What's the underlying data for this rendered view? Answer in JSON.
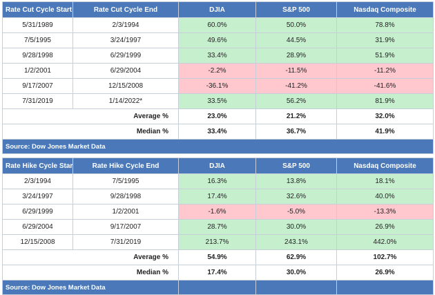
{
  "cut_table": {
    "headers": [
      "Rate Cut Cycle Start",
      "Rate Cut Cycle End",
      "DJIA",
      "S&P 500",
      "Nasdaq Composite"
    ],
    "rows": [
      {
        "start": "5/31/1989",
        "end": "2/3/1994",
        "djia": "60.0%",
        "sp500": "50.0%",
        "nasdaq": "78.8%",
        "djia_tone": "pos",
        "sp500_tone": "pos",
        "nasdaq_tone": "pos"
      },
      {
        "start": "7/5/1995",
        "end": "3/24/1997",
        "djia": "49.6%",
        "sp500": "44.5%",
        "nasdaq": "31.9%",
        "djia_tone": "pos",
        "sp500_tone": "pos",
        "nasdaq_tone": "pos"
      },
      {
        "start": "9/28/1998",
        "end": "6/29/1999",
        "djia": "33.4%",
        "sp500": "28.9%",
        "nasdaq": "51.9%",
        "djia_tone": "pos",
        "sp500_tone": "pos",
        "nasdaq_tone": "pos"
      },
      {
        "start": "1/2/2001",
        "end": "6/29/2004",
        "djia": "-2.2%",
        "sp500": "-11.5%",
        "nasdaq": "-11.2%",
        "djia_tone": "neg",
        "sp500_tone": "neg",
        "nasdaq_tone": "neg"
      },
      {
        "start": "9/17/2007",
        "end": "12/15/2008",
        "djia": "-36.1%",
        "sp500": "-41.2%",
        "nasdaq": "-41.6%",
        "djia_tone": "neg",
        "sp500_tone": "neg",
        "nasdaq_tone": "neg"
      },
      {
        "start": "7/31/2019",
        "end": "1/14/2022*",
        "djia": "33.5%",
        "sp500": "56.2%",
        "nasdaq": "81.9%",
        "djia_tone": "pos",
        "sp500_tone": "pos",
        "nasdaq_tone": "pos"
      }
    ],
    "average": {
      "label": "Average %",
      "djia": "23.0%",
      "sp500": "21.2%",
      "nasdaq": "32.0%"
    },
    "median": {
      "label": "Median %",
      "djia": "33.4%",
      "sp500": "36.7%",
      "nasdaq": "41.9%"
    },
    "source": "Source: Dow Jones Market Data"
  },
  "hike_table": {
    "headers": [
      "Rate Hike Cycle Start",
      "Rate Hike Cycle End",
      "DJIA",
      "S&P 500",
      "Nasdaq Composite"
    ],
    "rows": [
      {
        "start": "2/3/1994",
        "end": "7/5/1995",
        "djia": "16.3%",
        "sp500": "13.8%",
        "nasdaq": "18.1%",
        "djia_tone": "pos",
        "sp500_tone": "pos",
        "nasdaq_tone": "pos"
      },
      {
        "start": "3/24/1997",
        "end": "9/28/1998",
        "djia": "17.4%",
        "sp500": "32.6%",
        "nasdaq": "40.0%",
        "djia_tone": "pos",
        "sp500_tone": "pos",
        "nasdaq_tone": "pos"
      },
      {
        "start": "6/29/1999",
        "end": "1/2/2001",
        "djia": "-1.6%",
        "sp500": "-5.0%",
        "nasdaq": "-13.3%",
        "djia_tone": "neg",
        "sp500_tone": "neg",
        "nasdaq_tone": "neg"
      },
      {
        "start": "6/29/2004",
        "end": "9/17/2007",
        "djia": "28.7%",
        "sp500": "30.0%",
        "nasdaq": "26.9%",
        "djia_tone": "pos",
        "sp500_tone": "pos",
        "nasdaq_tone": "pos"
      },
      {
        "start": "12/15/2008",
        "end": "7/31/2019",
        "djia": "213.7%",
        "sp500": "243.1%",
        "nasdaq": "442.0%",
        "djia_tone": "pos",
        "sp500_tone": "pos",
        "nasdaq_tone": "pos"
      }
    ],
    "average": {
      "label": "Average %",
      "djia": "54.9%",
      "sp500": "62.9%",
      "nasdaq": "102.7%"
    },
    "median": {
      "label": "Median %",
      "djia": "17.4%",
      "sp500": "30.0%",
      "nasdaq": "26.9%"
    },
    "source": "Source: Dow Jones Market Data"
  },
  "colors": {
    "header_blue": "#4a78b8",
    "positive_green": "#c6efce",
    "negative_red": "#ffc7ce"
  }
}
